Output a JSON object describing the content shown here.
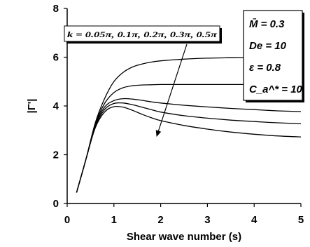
{
  "chart_data": {
    "type": "line",
    "xlabel": "Shear wave number (s)",
    "ylabel": "|Γ'|",
    "xlim": [
      0,
      5
    ],
    "ylim": [
      0,
      8
    ],
    "x_ticks": [
      "0",
      "1",
      "2",
      "3",
      "4",
      "5"
    ],
    "y_ticks": [
      "0",
      "2",
      "4",
      "6",
      "8"
    ],
    "grid": false,
    "legend": "none",
    "annotation": "k = 0.05π, 0.1π, 0.2π, 0.3π, 0.5π",
    "params": [
      "M̄ = 0.3",
      "De = 10",
      "ε = 0.8",
      "C_a^* = 10"
    ],
    "series": [
      {
        "x": [
          0.2,
          0.4,
          0.6,
          0.8,
          1.0,
          1.2,
          1.4,
          1.6,
          1.8,
          2.0,
          2.5,
          3.0,
          3.5,
          4.0,
          4.5,
          5.0
        ],
        "y": [
          0.45,
          1.8,
          3.3,
          4.3,
          5.0,
          5.38,
          5.6,
          5.72,
          5.8,
          5.85,
          5.92,
          5.96,
          5.98,
          5.99,
          6.0,
          6.0
        ]
      },
      {
        "x": [
          0.2,
          0.4,
          0.6,
          0.8,
          1.0,
          1.2,
          1.4,
          1.6,
          1.8,
          2.0,
          2.5,
          3.0,
          3.5,
          4.0,
          4.5,
          5.0
        ],
        "y": [
          0.45,
          1.8,
          3.25,
          4.1,
          4.55,
          4.75,
          4.83,
          4.86,
          4.87,
          4.88,
          4.88,
          4.88,
          4.88,
          4.88,
          4.88,
          4.88
        ]
      },
      {
        "x": [
          0.2,
          0.4,
          0.6,
          0.8,
          1.0,
          1.2,
          1.4,
          1.6,
          1.8,
          2.0,
          2.5,
          3.0,
          3.5,
          4.0,
          4.5,
          5.0
        ],
        "y": [
          0.45,
          1.8,
          3.2,
          3.95,
          4.22,
          4.3,
          4.28,
          4.23,
          4.17,
          4.12,
          4.03,
          3.96,
          3.9,
          3.85,
          3.8,
          3.77
        ]
      },
      {
        "x": [
          0.2,
          0.4,
          0.6,
          0.8,
          1.0,
          1.2,
          1.4,
          1.6,
          1.8,
          2.0,
          2.5,
          3.0,
          3.5,
          4.0,
          4.5,
          5.0
        ],
        "y": [
          0.45,
          1.8,
          3.15,
          3.85,
          4.1,
          4.12,
          4.05,
          3.95,
          3.85,
          3.75,
          3.6,
          3.5,
          3.42,
          3.36,
          3.31,
          3.27
        ]
      },
      {
        "x": [
          0.2,
          0.4,
          0.6,
          0.8,
          1.0,
          1.2,
          1.4,
          1.6,
          1.8,
          2.0,
          2.5,
          3.0,
          3.5,
          4.0,
          4.5,
          5.0
        ],
        "y": [
          0.45,
          1.8,
          3.1,
          3.75,
          3.97,
          3.95,
          3.82,
          3.66,
          3.52,
          3.4,
          3.2,
          3.05,
          2.93,
          2.84,
          2.77,
          2.73
        ]
      }
    ]
  }
}
